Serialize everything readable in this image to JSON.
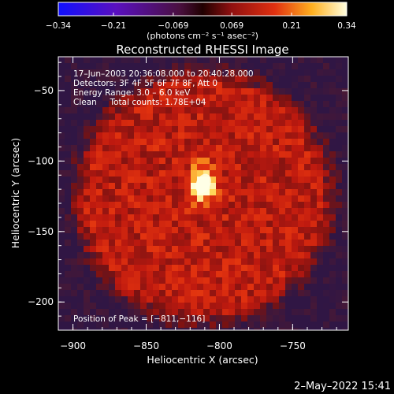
{
  "chart_data": {
    "type": "heatmap",
    "title": "Reconstructed RHESSI Image",
    "xlabel": "Heliocentric X (arcsec)",
    "ylabel": "Heliocentric Y (arcsec)",
    "xlim": [
      -910,
      -712
    ],
    "ylim": [
      -220,
      -26
    ],
    "x_ticks": [
      -900,
      -850,
      -800,
      -750
    ],
    "x_tick_labels": [
      "−900",
      "−850",
      "−800",
      "−750"
    ],
    "y_ticks": [
      -50,
      -100,
      -150,
      -200
    ],
    "y_tick_labels": [
      "−50",
      "−100",
      "−150",
      "−200"
    ],
    "colorbar": {
      "min": -0.34,
      "max": 0.34,
      "ticks": [
        -0.34,
        -0.21,
        -0.069,
        0.069,
        0.21,
        0.34
      ],
      "tick_labels": [
        "−0.34",
        "−0.21",
        "−0.069",
        "0.069",
        "0.21",
        "0.34"
      ],
      "units": "(photons cm⁻² s⁻¹ asec⁻²)"
    },
    "info_lines": [
      "17–Jun–2003 20:36:08.000 to 20:40:28.000",
      "Detectors: 3F 4F 5F 6F 7F 8F, Att 0",
      "Energy Range: 3.0 – 6.0 keV",
      "Clean     Total counts: 1.78E+04"
    ],
    "peak_label": "Position of Peak = [−811,−116]",
    "peak": {
      "x": -811,
      "y": -116,
      "value": 0.34
    }
  },
  "timestamp": "2–May–2022 15:41",
  "colors": {
    "background": "#000000",
    "text": "#ffffff"
  }
}
